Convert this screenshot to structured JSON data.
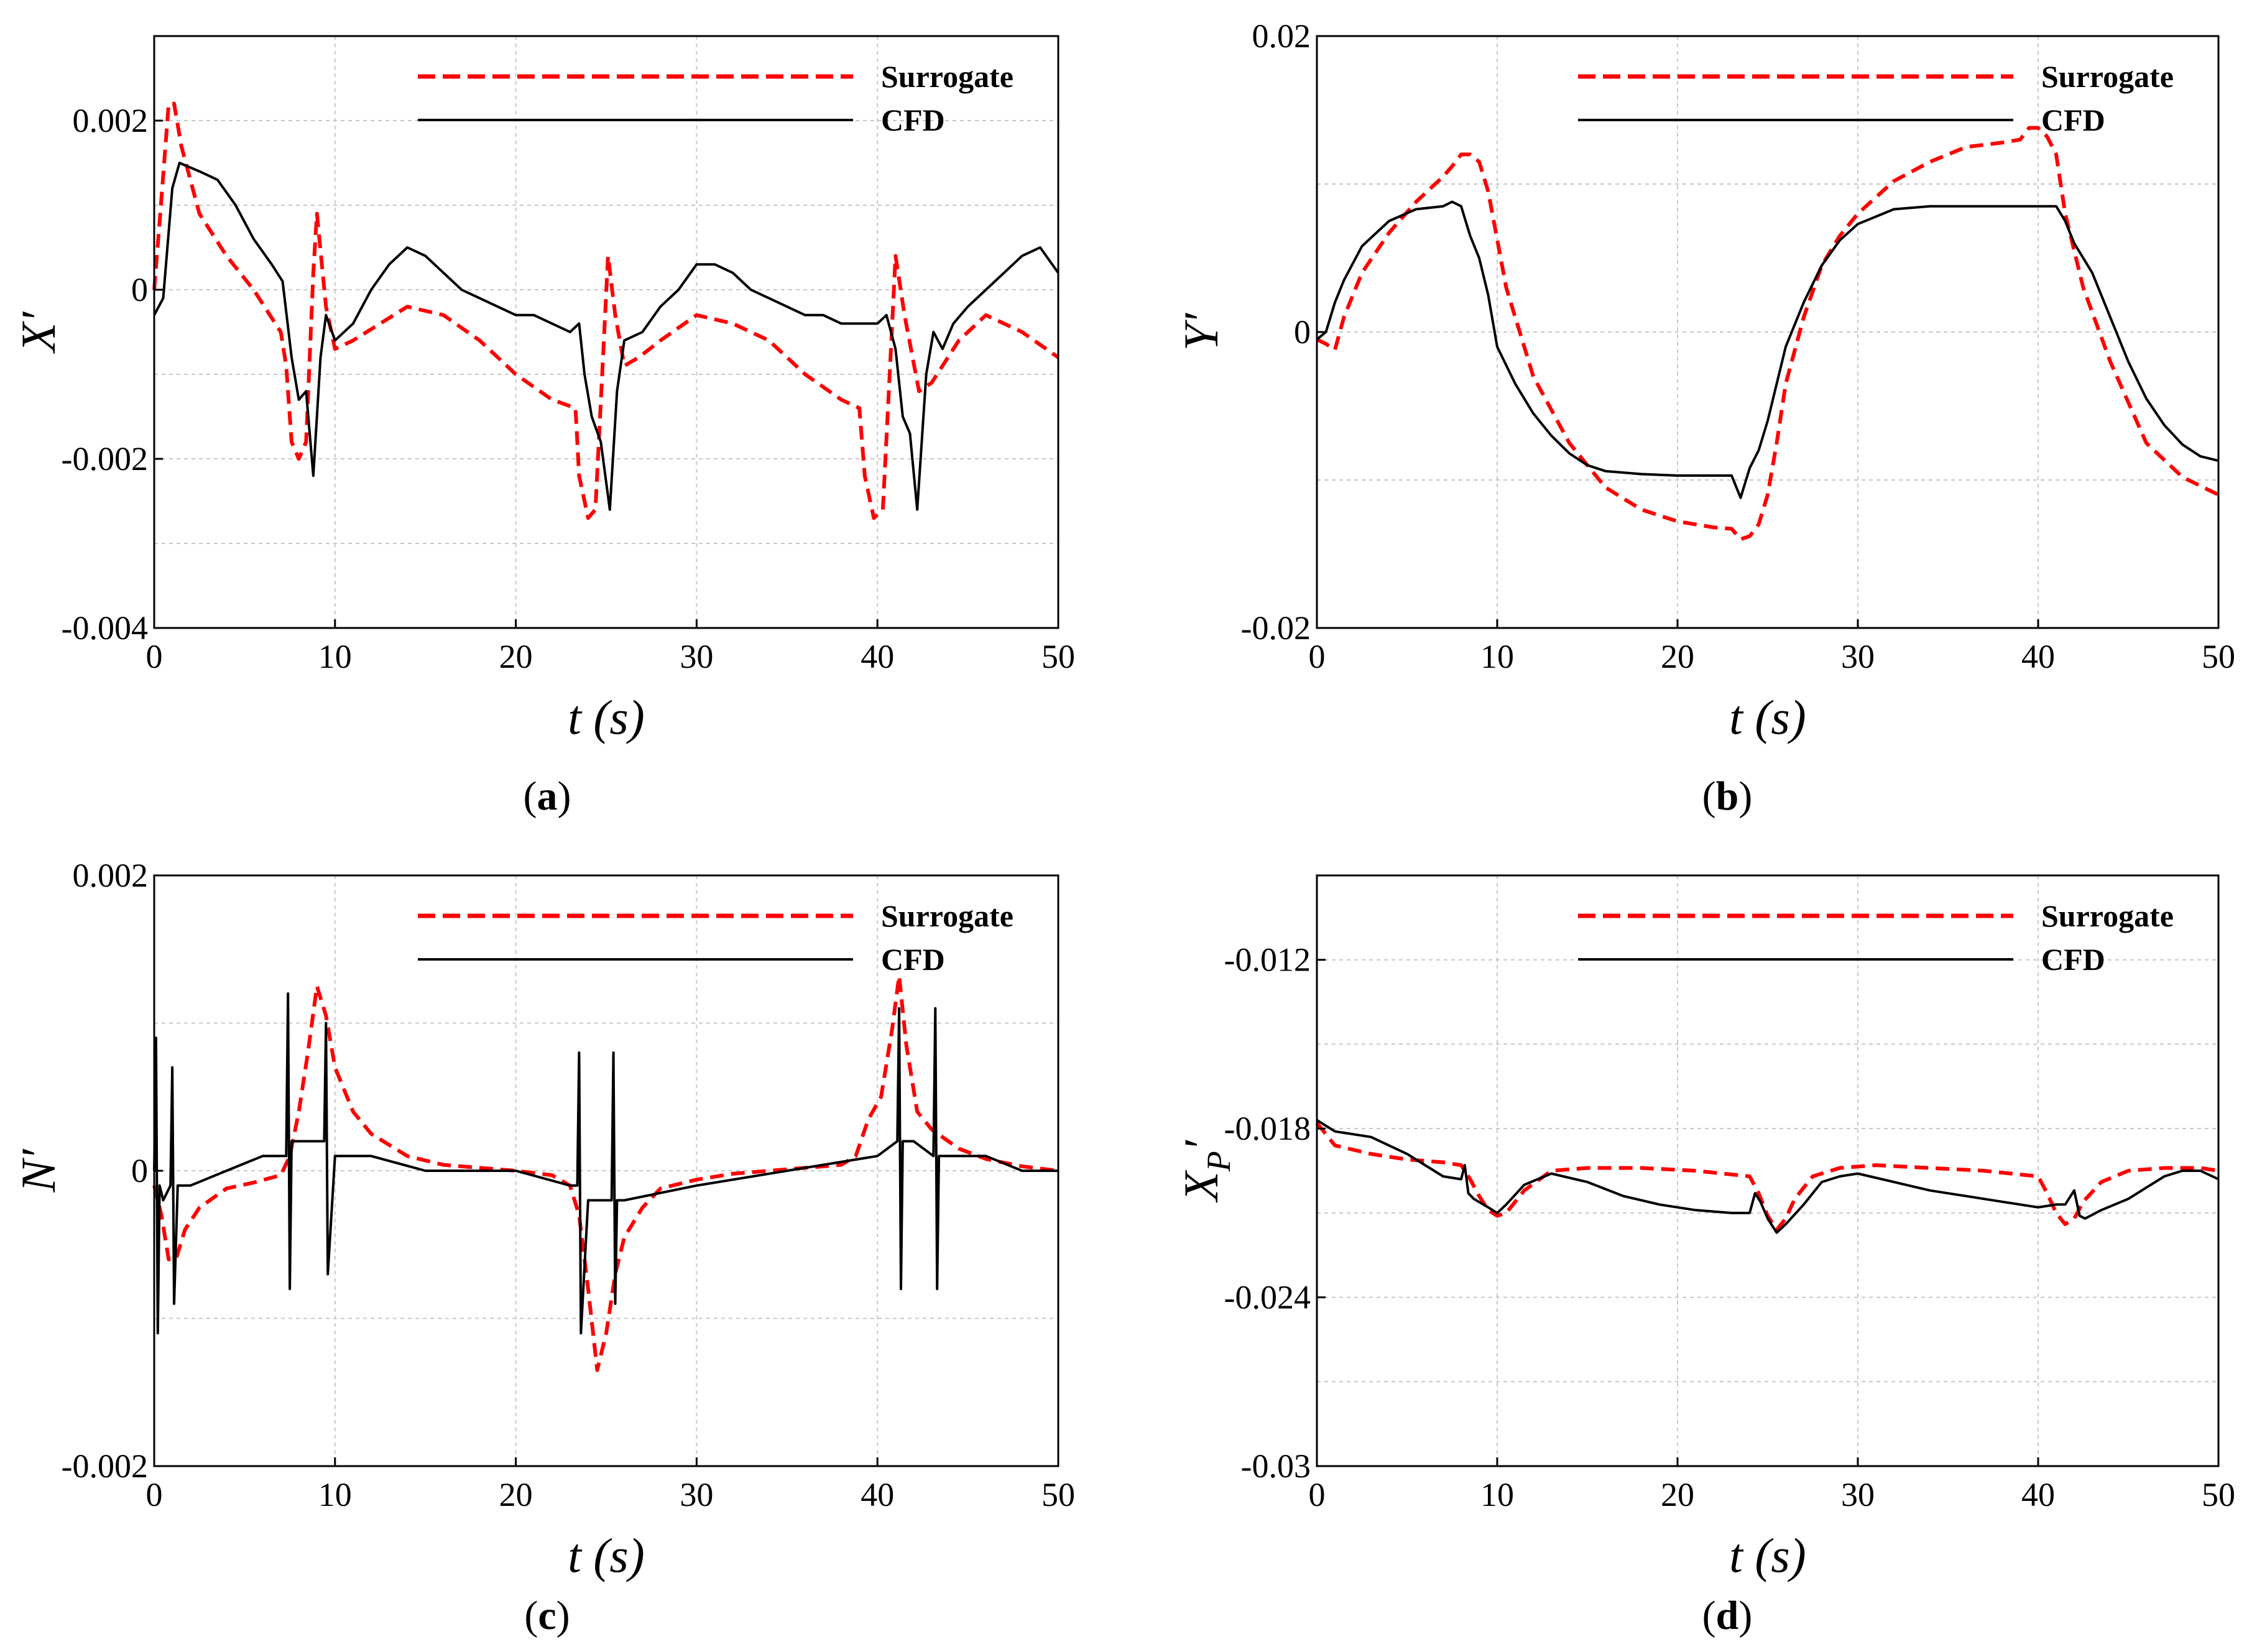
{
  "colors": {
    "surrogate": "#ff0000",
    "cfd": "#000000",
    "grid": "#c8c8c8"
  },
  "chart_data": [
    {
      "type": "line",
      "panel_label": "(a)",
      "panel_letter": "a",
      "ylabel": "X′",
      "xlabel": "t (s)",
      "xlim": [
        0,
        50
      ],
      "ylim": [
        -0.004,
        0.003
      ],
      "xticks": [
        0,
        10,
        20,
        30,
        40,
        50
      ],
      "xtick_labels": [
        "0",
        "10",
        "20",
        "30",
        "40",
        "50"
      ],
      "yticks": [
        -0.004,
        -0.002,
        0,
        0.002
      ],
      "ytick_labels": [
        "-0.004",
        "-0.002",
        "0",
        "0.002"
      ],
      "grid": true,
      "legend": [
        "Surrogate",
        "CFD"
      ],
      "legend_position": "top-right",
      "series": [
        {
          "name": "Surrogate",
          "style": "dashed",
          "x": [
            0,
            0.3,
            0.8,
            1.1,
            1.5,
            2.5,
            4,
            5.5,
            7,
            7.3,
            7.6,
            8,
            8.4,
            8.8,
            9.0,
            9.5,
            10,
            11,
            12.5,
            14,
            16,
            18,
            20,
            22,
            23.3,
            23.5,
            24,
            24.4,
            24.8,
            25.1,
            25.5,
            26,
            26.8,
            28,
            30,
            32,
            34,
            36,
            38,
            39,
            39.3,
            39.8,
            40.3,
            40.7,
            41.0,
            41.5,
            42.3,
            43,
            44.5,
            46,
            48,
            50
          ],
          "y": [
            0.0,
            0.0008,
            0.0022,
            0.0022,
            0.0017,
            0.0009,
            0.0004,
            0.0,
            -0.0005,
            -0.0009,
            -0.0018,
            -0.002,
            -0.0018,
            0.0002,
            0.0009,
            -0.0002,
            -0.0007,
            -0.0006,
            -0.0004,
            -0.0002,
            -0.0003,
            -0.0006,
            -0.001,
            -0.0013,
            -0.0014,
            -0.0022,
            -0.0027,
            -0.0026,
            -0.0009,
            0.0004,
            -0.0003,
            -0.0009,
            -0.0008,
            -0.0006,
            -0.0003,
            -0.0004,
            -0.0006,
            -0.001,
            -0.0013,
            -0.0014,
            -0.0022,
            -0.0027,
            -0.0026,
            -0.0009,
            0.0004,
            -0.0003,
            -0.0012,
            -0.0011,
            -0.0006,
            -0.0003,
            -0.0005,
            -0.0008
          ]
        },
        {
          "name": "CFD",
          "style": "solid",
          "x": [
            0,
            0.5,
            1.0,
            1.4,
            2.5,
            3.5,
            4.5,
            5.5,
            6.5,
            7.1,
            7.6,
            8.0,
            8.4,
            8.8,
            9.2,
            9.5,
            10,
            11,
            12,
            13,
            14,
            15,
            16,
            17,
            18,
            19,
            20,
            21,
            22,
            23,
            23.5,
            23.8,
            24.2,
            24.7,
            25.2,
            25.6,
            26,
            27,
            28,
            29,
            30,
            31,
            32,
            33,
            34,
            35,
            36,
            37,
            38,
            39,
            39.5,
            40.0,
            40.5,
            41.0,
            41.4,
            41.8,
            42.2,
            42.7,
            43.1,
            43.6,
            44.2,
            45,
            46,
            47,
            48,
            49,
            50
          ],
          "y": [
            -0.0003,
            -0.0001,
            0.0012,
            0.0015,
            0.0014,
            0.0013,
            0.001,
            0.0006,
            0.0003,
            0.0001,
            -0.0008,
            -0.0013,
            -0.0012,
            -0.0022,
            -0.0008,
            -0.0003,
            -0.0006,
            -0.0004,
            0.0,
            0.0003,
            0.0005,
            0.0004,
            0.0002,
            0.0,
            -0.0001,
            -0.0002,
            -0.0003,
            -0.0003,
            -0.0004,
            -0.0005,
            -0.0004,
            -0.001,
            -0.0015,
            -0.0018,
            -0.0026,
            -0.0012,
            -0.0006,
            -0.0005,
            -0.0002,
            0.0,
            0.0003,
            0.0003,
            0.0002,
            0.0,
            -0.0001,
            -0.0002,
            -0.0003,
            -0.0003,
            -0.0004,
            -0.0004,
            -0.0004,
            -0.0004,
            -0.0003,
            -0.0007,
            -0.0015,
            -0.0017,
            -0.0026,
            -0.001,
            -0.0005,
            -0.0007,
            -0.0004,
            -0.0002,
            0.0,
            0.0002,
            0.0004,
            0.0005,
            0.0002
          ]
        }
      ]
    },
    {
      "type": "line",
      "panel_label": "(b)",
      "panel_letter": "b",
      "ylabel": "Y′",
      "xlabel": "t (s)",
      "xlim": [
        0,
        50
      ],
      "ylim": [
        -0.02,
        0.02
      ],
      "xticks": [
        0,
        10,
        20,
        30,
        40,
        50
      ],
      "xtick_labels": [
        "0",
        "10",
        "20",
        "30",
        "40",
        "50"
      ],
      "yticks": [
        -0.02,
        0,
        0.02
      ],
      "ytick_labels": [
        "-0.02",
        "0",
        "0.02"
      ],
      "grid": true,
      "legend": [
        "Surrogate",
        "CFD"
      ],
      "legend_position": "top-right",
      "series": [
        {
          "name": "Surrogate",
          "style": "dashed",
          "x": [
            0,
            0.5,
            1.0,
            1.5,
            2.5,
            4,
            5.5,
            7,
            7.5,
            8,
            8.5,
            9,
            9.5,
            10.5,
            12,
            14,
            16,
            18,
            20,
            22,
            23,
            23.5,
            24,
            24.5,
            25,
            25.5,
            26,
            27,
            28,
            29,
            30,
            32,
            34,
            36,
            38,
            39,
            39.5,
            40,
            40.5,
            41,
            41.5,
            42.5,
            44,
            46,
            48,
            50
          ],
          "y": [
            -0.0005,
            -0.0008,
            -0.0012,
            0.001,
            0.004,
            0.0067,
            0.0088,
            0.0105,
            0.0112,
            0.012,
            0.012,
            0.0115,
            0.0095,
            0.003,
            -0.003,
            -0.0075,
            -0.0105,
            -0.012,
            -0.0128,
            -0.0132,
            -0.0133,
            -0.014,
            -0.0138,
            -0.013,
            -0.011,
            -0.0075,
            -0.0035,
            0.001,
            0.0045,
            0.0065,
            0.008,
            0.0102,
            0.0115,
            0.0125,
            0.0128,
            0.013,
            0.0138,
            0.0138,
            0.0132,
            0.012,
            0.008,
            0.003,
            -0.002,
            -0.0075,
            -0.0098,
            -0.011
          ]
        },
        {
          "name": "CFD",
          "style": "solid",
          "x": [
            0,
            0.5,
            1.0,
            1.5,
            2.5,
            4,
            5.5,
            7,
            7.5,
            8,
            8.5,
            9,
            9.5,
            10,
            11,
            12,
            13,
            14,
            15,
            16,
            18,
            20,
            22,
            23,
            23.5,
            24,
            24.5,
            25,
            26,
            27,
            28,
            29,
            30,
            32,
            34,
            36,
            38,
            40,
            41,
            41.5,
            42,
            43,
            44,
            45,
            46,
            47,
            48,
            49,
            50
          ],
          "y": [
            -0.0005,
            0.0,
            0.002,
            0.0035,
            0.0058,
            0.0075,
            0.0083,
            0.0085,
            0.0088,
            0.0085,
            0.0065,
            0.005,
            0.0025,
            -0.001,
            -0.0035,
            -0.0055,
            -0.007,
            -0.0082,
            -0.009,
            -0.0094,
            -0.0096,
            -0.0097,
            -0.0097,
            -0.0097,
            -0.0112,
            -0.0092,
            -0.008,
            -0.006,
            -0.001,
            0.002,
            0.0045,
            0.0062,
            0.0073,
            0.0083,
            0.0085,
            0.0085,
            0.0085,
            0.0085,
            0.0085,
            0.0075,
            0.006,
            0.004,
            0.001,
            -0.002,
            -0.0045,
            -0.0063,
            -0.0076,
            -0.0084,
            -0.0087
          ]
        }
      ]
    },
    {
      "type": "line",
      "panel_label": "(c)",
      "panel_letter": "c",
      "ylabel": "N′",
      "xlabel": "t (s)",
      "xlim": [
        0,
        50
      ],
      "ylim": [
        -0.002,
        0.002
      ],
      "xticks": [
        0,
        10,
        20,
        30,
        40,
        50
      ],
      "xtick_labels": [
        "0",
        "10",
        "20",
        "30",
        "40",
        "50"
      ],
      "yticks": [
        -0.002,
        0,
        0.002
      ],
      "ytick_labels": [
        "-0.002",
        "0",
        "0.002"
      ],
      "grid": true,
      "legend": [
        "Surrogate",
        "CFD"
      ],
      "legend_position": "top-right",
      "series": [
        {
          "name": "Surrogate",
          "style": "dashed",
          "x": [
            0,
            0.4,
            0.8,
            1.2,
            1.7,
            2.5,
            4,
            5.5,
            7,
            7.5,
            8,
            8.5,
            9,
            9.5,
            10,
            11,
            12,
            14,
            16,
            18,
            20,
            22,
            23,
            23.5,
            24,
            24.5,
            25,
            25.5,
            26,
            27,
            28,
            30,
            32,
            34,
            36,
            38,
            38.8,
            39.5,
            40.2,
            40.8,
            41.2,
            41.6,
            42.2,
            43,
            44.5,
            46,
            48,
            50
          ],
          "y": [
            -0.0001,
            -0.0003,
            -0.0006,
            -0.0006,
            -0.0004,
            -0.00025,
            -0.00012,
            -8e-05,
            -3e-05,
            0.0001,
            0.0004,
            0.0008,
            0.00125,
            0.00105,
            0.0007,
            0.0004,
            0.00025,
            0.0001,
            4e-05,
            2e-05,
            0.0,
            -3e-05,
            -0.0001,
            -0.0003,
            -0.0008,
            -0.00135,
            -0.0011,
            -0.0007,
            -0.00045,
            -0.00025,
            -0.00012,
            -6e-05,
            -2e-05,
            0.0,
            2e-05,
            4e-05,
            0.0001,
            0.00035,
            0.0005,
            0.00095,
            0.00132,
            0.00085,
            0.0004,
            0.00028,
            0.00015,
            8e-05,
            3e-05,
            0.0
          ]
        },
        {
          "name": "CFD",
          "style": "solid",
          "x": [
            0,
            0.1,
            0.2,
            0.3,
            0.5,
            0.9,
            1.0,
            1.1,
            1.3,
            2,
            4,
            6,
            7.3,
            7.4,
            7.5,
            7.6,
            8,
            9,
            9.4,
            9.5,
            9.6,
            10,
            12,
            15,
            18,
            20,
            23,
            23.4,
            23.5,
            23.6,
            24,
            25.3,
            25.4,
            25.5,
            25.6,
            26,
            30,
            35,
            40,
            41.1,
            41.2,
            41.3,
            41.4,
            42,
            43.1,
            43.2,
            43.3,
            43.4,
            44,
            46,
            48,
            50
          ],
          "y": [
            0.0,
            0.0009,
            -0.0011,
            -0.0001,
            -0.0002,
            -0.0001,
            0.0007,
            -0.0009,
            -0.0001,
            -0.0001,
            0.0,
            0.0001,
            0.0001,
            0.0012,
            -0.0008,
            0.0002,
            0.0002,
            0.0002,
            0.0002,
            0.001,
            -0.0007,
            0.0001,
            0.0001,
            0.0,
            0.0,
            0.0,
            -0.0001,
            -0.0001,
            0.0008,
            -0.0011,
            -0.0002,
            -0.0002,
            0.0008,
            -0.0009,
            -0.0002,
            -0.0002,
            -0.0001,
            0.0,
            0.0001,
            0.0002,
            0.0011,
            -0.0008,
            0.0002,
            0.0002,
            0.0001,
            0.0011,
            -0.0008,
            0.0001,
            0.0001,
            0.0001,
            0.0,
            0.0
          ]
        }
      ]
    },
    {
      "type": "line",
      "panel_label": "(d)",
      "panel_letter": "d",
      "ylabel": "X",
      "ylabel_sub": "P",
      "ylabel_prime": "′",
      "xlabel": "t (s)",
      "xlim": [
        0,
        50
      ],
      "ylim": [
        -0.03,
        -0.009
      ],
      "xticks": [
        0,
        10,
        20,
        30,
        40,
        50
      ],
      "xtick_labels": [
        "0",
        "10",
        "20",
        "30",
        "40",
        "50"
      ],
      "yticks": [
        -0.03,
        -0.024,
        -0.018,
        -0.012
      ],
      "ytick_labels": [
        "-0.03",
        "-0.024",
        "-0.018",
        "-0.012"
      ],
      "grid": true,
      "legend": [
        "Surrogate",
        "CFD"
      ],
      "legend_position": "top-right",
      "series": [
        {
          "name": "Surrogate",
          "style": "dashed",
          "x": [
            0,
            1,
            3,
            5,
            7,
            8,
            8.5,
            9,
            9.5,
            10,
            10.5,
            11.5,
            13,
            15,
            18,
            21,
            24,
            24.5,
            25,
            25.5,
            26,
            26.5,
            27.5,
            29,
            31,
            34,
            37,
            40,
            40.5,
            41,
            41.5,
            42,
            42.5,
            43.5,
            45,
            47,
            49,
            50
          ],
          "y": [
            -0.0178,
            -0.0186,
            -0.0189,
            -0.0191,
            -0.0192,
            -0.0193,
            -0.0198,
            -0.0204,
            -0.0209,
            -0.0211,
            -0.021,
            -0.0202,
            -0.0195,
            -0.0194,
            -0.0194,
            -0.0195,
            -0.0197,
            -0.0203,
            -0.0211,
            -0.0216,
            -0.0212,
            -0.0205,
            -0.0197,
            -0.0194,
            -0.0193,
            -0.0194,
            -0.0195,
            -0.0197,
            -0.0203,
            -0.021,
            -0.0214,
            -0.0212,
            -0.0206,
            -0.0199,
            -0.0195,
            -0.0194,
            -0.0194,
            -0.0195
          ]
        },
        {
          "name": "CFD",
          "style": "solid",
          "x": [
            0,
            1,
            2,
            3,
            4,
            5,
            6,
            7,
            8,
            8.2,
            8.4,
            8.7,
            9.5,
            10,
            10.5,
            11.5,
            13,
            15,
            17,
            19,
            21,
            23,
            24,
            24.3,
            24.6,
            25,
            25.5,
            26,
            27,
            28,
            29,
            30,
            32,
            34,
            36,
            38,
            40,
            41,
            41.5,
            42,
            42.3,
            42.6,
            43.5,
            45,
            46,
            47,
            48,
            49,
            50
          ],
          "y": [
            -0.0177,
            -0.0181,
            -0.0182,
            -0.0183,
            -0.0186,
            -0.0189,
            -0.0193,
            -0.0197,
            -0.0198,
            -0.0193,
            -0.0203,
            -0.0205,
            -0.0208,
            -0.021,
            -0.0207,
            -0.02,
            -0.0196,
            -0.0199,
            -0.0204,
            -0.0207,
            -0.0209,
            -0.021,
            -0.021,
            -0.0203,
            -0.0206,
            -0.0212,
            -0.0217,
            -0.0214,
            -0.0207,
            -0.0199,
            -0.0197,
            -0.0196,
            -0.0199,
            -0.0202,
            -0.0204,
            -0.0206,
            -0.0208,
            -0.0207,
            -0.0207,
            -0.0202,
            -0.0211,
            -0.0212,
            -0.0209,
            -0.0205,
            -0.0201,
            -0.0197,
            -0.0195,
            -0.0195,
            -0.0198
          ]
        }
      ]
    }
  ]
}
